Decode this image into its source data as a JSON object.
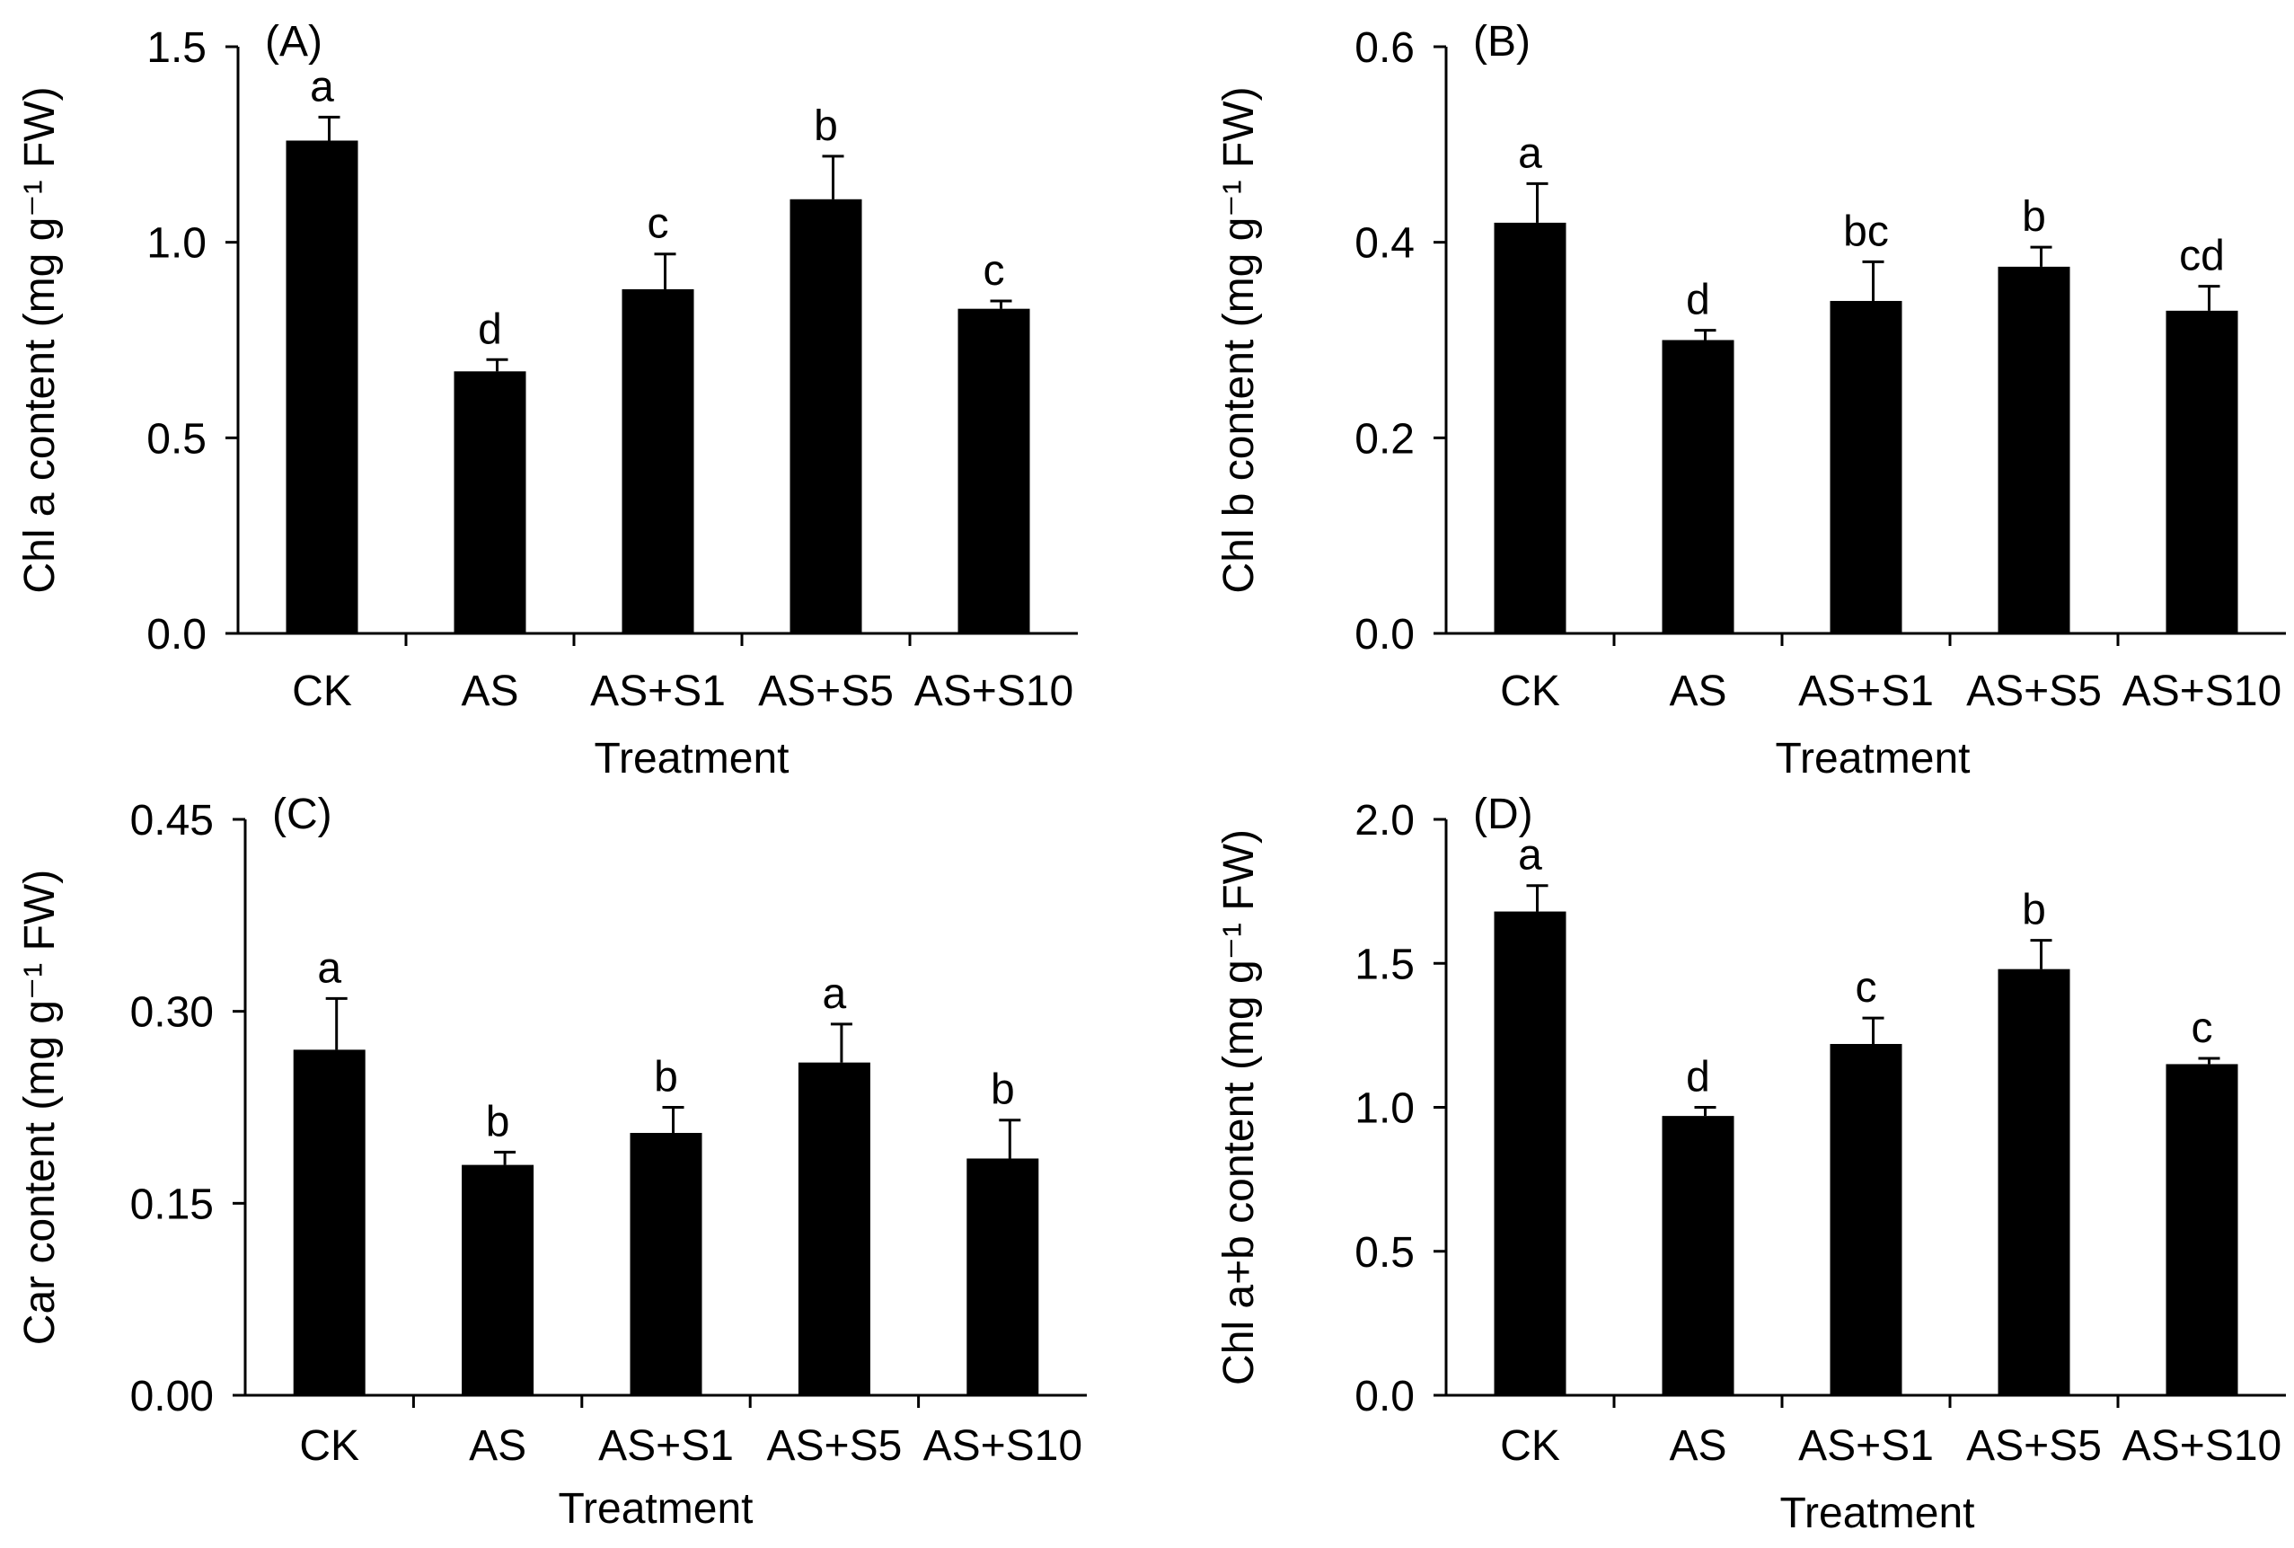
{
  "chart_data": [
    {
      "type": "bar",
      "panel_label": "(A)",
      "categories": [
        "CK",
        "AS",
        "AS+S1",
        "AS+S5",
        "AS+S10"
      ],
      "values": [
        1.26,
        0.67,
        0.88,
        1.11,
        0.83
      ],
      "errors": [
        0.06,
        0.03,
        0.09,
        0.11,
        0.02
      ],
      "significance": [
        "a",
        "d",
        "c",
        "b",
        "c"
      ],
      "xlabel": "Treatment",
      "ylabel": "Chl a content (mg g⁻¹ FW)",
      "ylim": [
        0,
        1.5
      ],
      "yticks": [
        "0.0",
        "0.5",
        "1.0",
        "1.5"
      ],
      "ytick_values": [
        0,
        0.5,
        1.0,
        1.5
      ]
    },
    {
      "type": "bar",
      "panel_label": "(B)",
      "categories": [
        "CK",
        "AS",
        "AS+S1",
        "AS+S5",
        "AS+S10"
      ],
      "values": [
        0.42,
        0.3,
        0.34,
        0.375,
        0.33
      ],
      "errors": [
        0.04,
        0.01,
        0.04,
        0.02,
        0.025
      ],
      "significance": [
        "a",
        "d",
        "bc",
        "b",
        "cd"
      ],
      "xlabel": "Treatment",
      "ylabel": "Chl b content (mg g⁻¹ FW)",
      "ylim": [
        0,
        0.6
      ],
      "yticks": [
        "0.0",
        "0.2",
        "0.4",
        "0.6"
      ],
      "ytick_values": [
        0,
        0.2,
        0.4,
        0.6
      ]
    },
    {
      "type": "bar",
      "panel_label": "(C)",
      "categories": [
        "CK",
        "AS",
        "AS+S1",
        "AS+S5",
        "AS+S10"
      ],
      "values": [
        0.27,
        0.18,
        0.205,
        0.26,
        0.185
      ],
      "errors": [
        0.04,
        0.01,
        0.02,
        0.03,
        0.03
      ],
      "significance": [
        "a",
        "b",
        "b",
        "a",
        "b"
      ],
      "xlabel": "Treatment",
      "ylabel": "Car content (mg g⁻¹ FW)",
      "ylim": [
        0,
        0.45
      ],
      "yticks": [
        "0.00",
        "0.15",
        "0.30",
        "0.45"
      ],
      "ytick_values": [
        0,
        0.15,
        0.3,
        0.45
      ]
    },
    {
      "type": "bar",
      "panel_label": "(D)",
      "categories": [
        "CK",
        "AS",
        "AS+S1",
        "AS+S5",
        "AS+S10"
      ],
      "values": [
        1.68,
        0.97,
        1.22,
        1.48,
        1.15
      ],
      "errors": [
        0.09,
        0.03,
        0.09,
        0.1,
        0.02
      ],
      "significance": [
        "a",
        "d",
        "c",
        "b",
        "c"
      ],
      "xlabel": "Treatment",
      "ylabel": "Chl a+b content (mg g⁻¹ FW)",
      "ylim": [
        0,
        2.0
      ],
      "yticks": [
        "0.0",
        "0.5",
        "1.0",
        "1.5",
        "2.0"
      ],
      "ytick_values": [
        0,
        0.5,
        1.0,
        1.5,
        2.0
      ]
    }
  ],
  "colors": {
    "bar": "#000000",
    "axis": "#000000"
  }
}
